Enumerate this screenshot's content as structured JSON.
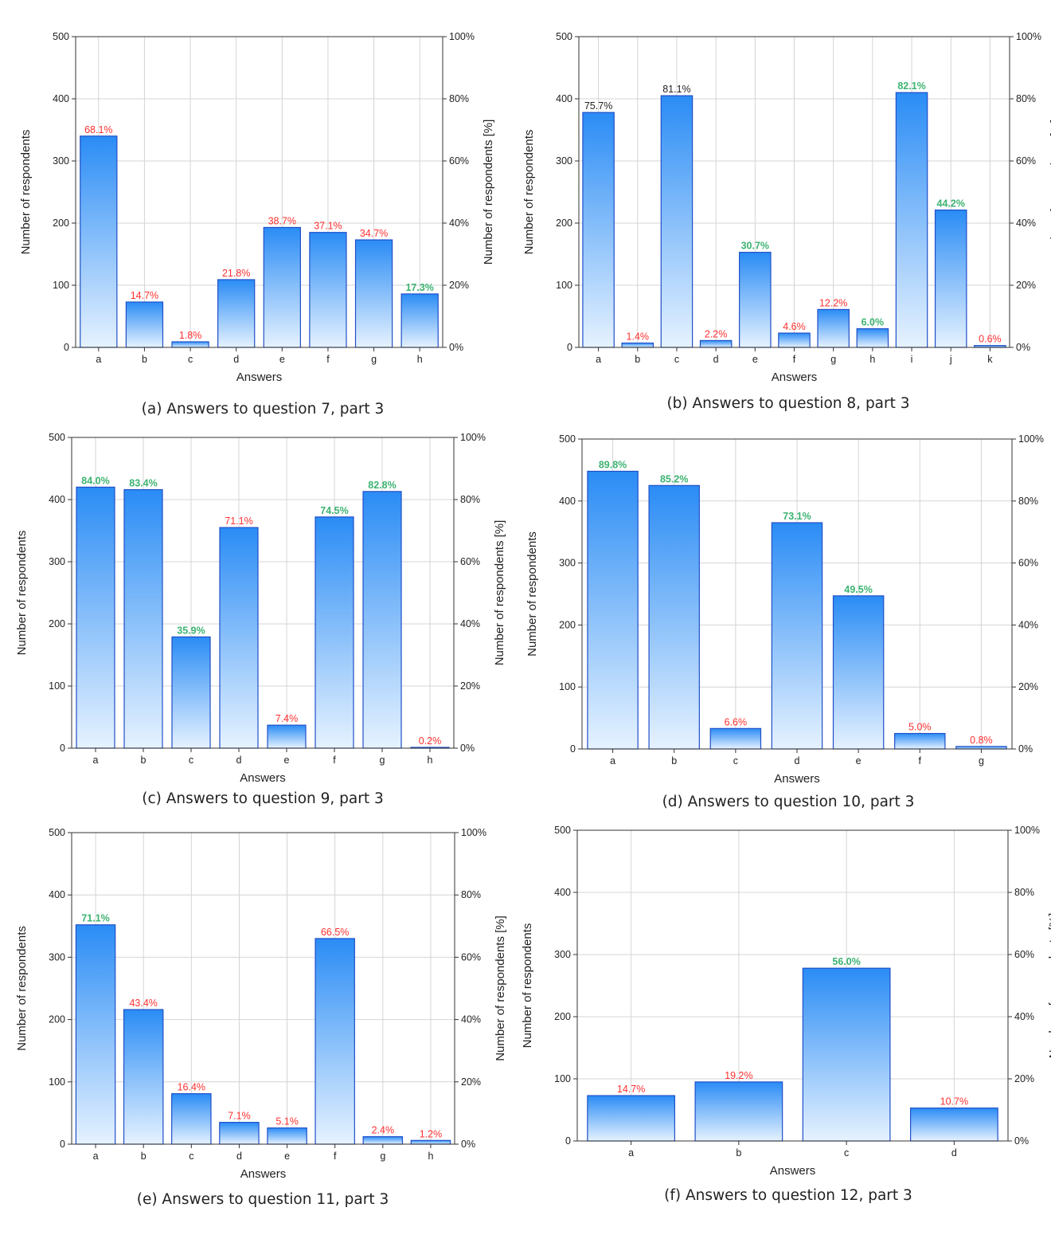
{
  "colors": {
    "bar_top": "#2a8cf5",
    "bar_bottom": "#e6f2ff",
    "bar_stroke": "#1f4fc8",
    "label_red": "#ff3030",
    "label_green": "#3cb371",
    "label_dark": "#222222",
    "grid": "#d4d4d4"
  },
  "chart_data": [
    {
      "id": "a",
      "type": "bar",
      "caption": "(a) Answers to question 7, part 3",
      "xlabel": "Answers",
      "ylabel": "Number of respondents",
      "ylabel2": "Number of respondents [%]",
      "ylim": [
        0,
        500
      ],
      "yticks": [
        "0",
        "100",
        "200",
        "300",
        "400",
        "500"
      ],
      "y2ticks": [
        "0%",
        "20%",
        "40%",
        "60%",
        "80%",
        "100%"
      ],
      "categories": [
        "a",
        "b",
        "c",
        "d",
        "e",
        "f",
        "g",
        "h"
      ],
      "values": [
        340,
        73,
        9,
        109,
        193,
        185,
        173,
        86
      ],
      "labels": [
        "68.1%",
        "14.7%",
        "1.8%",
        "21.8%",
        "38.7%",
        "37.1%",
        "34.7%",
        "17.3%"
      ],
      "label_colors": [
        "red",
        "red",
        "red",
        "red",
        "red",
        "red",
        "red",
        "green"
      ]
    },
    {
      "id": "b",
      "type": "bar",
      "caption": "(b) Answers to question 8, part 3",
      "xlabel": "Answers",
      "ylabel": "Number of respondents",
      "ylabel2": "Number of respondents [%]",
      "ylim": [
        0,
        500
      ],
      "yticks": [
        "0",
        "100",
        "200",
        "300",
        "400",
        "500"
      ],
      "y2ticks": [
        "0%",
        "20%",
        "40%",
        "60%",
        "80%",
        "100%"
      ],
      "categories": [
        "a",
        "b",
        "c",
        "d",
        "e",
        "f",
        "g",
        "h",
        "i",
        "j",
        "k"
      ],
      "values": [
        378,
        7,
        405,
        11,
        153,
        23,
        61,
        30,
        410,
        221,
        3
      ],
      "labels": [
        "75.7%",
        "1.4%",
        "81.1%",
        "2.2%",
        "30.7%",
        "4.6%",
        "12.2%",
        "6.0%",
        "82.1%",
        "44.2%",
        "0.6%"
      ],
      "label_colors": [
        "dark",
        "red",
        "dark",
        "red",
        "green",
        "red",
        "red",
        "green",
        "green",
        "green",
        "red"
      ]
    },
    {
      "id": "c",
      "type": "bar",
      "caption": "(c) Answers to question 9, part 3",
      "xlabel": "Answers",
      "ylabel": "Number of respondents",
      "ylabel2": "Number of respondents [%]",
      "ylim": [
        0,
        500
      ],
      "yticks": [
        "0",
        "100",
        "200",
        "300",
        "400",
        "500"
      ],
      "y2ticks": [
        "0%",
        "20%",
        "40%",
        "60%",
        "80%",
        "100%"
      ],
      "categories": [
        "a",
        "b",
        "c",
        "d",
        "e",
        "f",
        "g",
        "h"
      ],
      "values": [
        420,
        416,
        179,
        355,
        37,
        372,
        413,
        1
      ],
      "labels": [
        "84.0%",
        "83.4%",
        "35.9%",
        "71.1%",
        "7.4%",
        "74.5%",
        "82.8%",
        "0.2%"
      ],
      "label_colors": [
        "green",
        "green",
        "green",
        "red",
        "red",
        "green",
        "green",
        "red"
      ]
    },
    {
      "id": "d",
      "type": "bar",
      "caption": "(d) Answers to question 10, part 3",
      "xlabel": "Answers",
      "ylabel": "Number of respondents",
      "ylabel2": "Number of respondents [%]",
      "ylim": [
        0,
        500
      ],
      "yticks": [
        "0",
        "100",
        "200",
        "300",
        "400",
        "500"
      ],
      "y2ticks": [
        "0%",
        "20%",
        "40%",
        "60%",
        "80%",
        "100%"
      ],
      "categories": [
        "a",
        "b",
        "c",
        "d",
        "e",
        "f",
        "g"
      ],
      "values": [
        448,
        425,
        33,
        365,
        247,
        25,
        4
      ],
      "labels": [
        "89.8%",
        "85.2%",
        "6.6%",
        "73.1%",
        "49.5%",
        "5.0%",
        "0.8%"
      ],
      "label_colors": [
        "green",
        "green",
        "red",
        "green",
        "green",
        "red",
        "red"
      ]
    },
    {
      "id": "e",
      "type": "bar",
      "caption": "(e) Answers to question 11, part 3",
      "xlabel": "Answers",
      "ylabel": "Number of respondents",
      "ylabel2": "Number of respondents [%]",
      "ylim": [
        0,
        500
      ],
      "yticks": [
        "0",
        "100",
        "200",
        "300",
        "400",
        "500"
      ],
      "y2ticks": [
        "0%",
        "20%",
        "40%",
        "60%",
        "80%",
        "100%"
      ],
      "categories": [
        "a",
        "b",
        "c",
        "d",
        "e",
        "f",
        "g",
        "h"
      ],
      "values": [
        352,
        216,
        81,
        35,
        26,
        330,
        12,
        6
      ],
      "labels": [
        "71.1%",
        "43.4%",
        "16.4%",
        "7.1%",
        "5.1%",
        "66.5%",
        "2.4%",
        "1.2%"
      ],
      "label_colors": [
        "green",
        "red",
        "red",
        "red",
        "red",
        "red",
        "red",
        "red"
      ]
    },
    {
      "id": "f",
      "type": "bar",
      "caption": "(f) Answers to question 12, part 3",
      "xlabel": "Answers",
      "ylabel": "Number of respondents",
      "ylabel2": "Number of respondents [%]",
      "ylim": [
        0,
        500
      ],
      "yticks": [
        "0",
        "100",
        "200",
        "300",
        "400",
        "500"
      ],
      "y2ticks": [
        "0%",
        "20%",
        "40%",
        "60%",
        "80%",
        "100%"
      ],
      "categories": [
        "a",
        "b",
        "c",
        "d"
      ],
      "values": [
        73,
        95,
        278,
        53
      ],
      "labels": [
        "14.7%",
        "19.2%",
        "56.0%",
        "10.7%"
      ],
      "label_colors": [
        "red",
        "red",
        "green",
        "red"
      ]
    }
  ]
}
